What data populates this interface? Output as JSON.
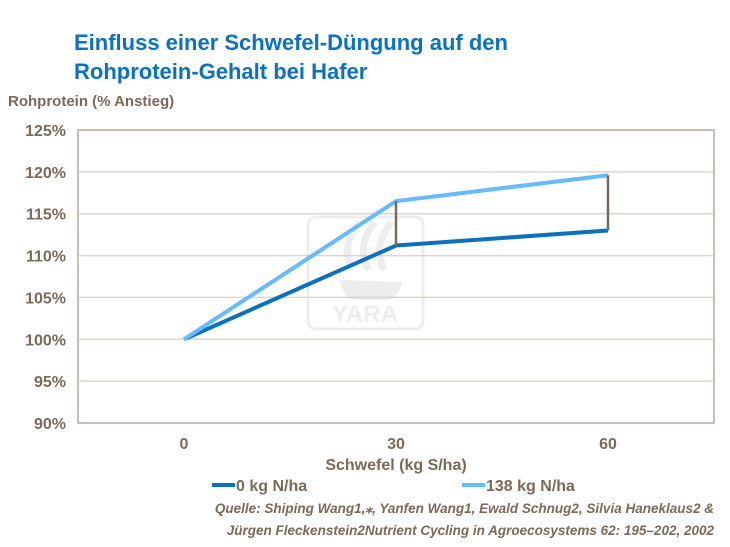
{
  "chart_data": {
    "type": "line",
    "title": [
      "Einfluss einer Schwefel-Düngung auf den",
      "Rohprotein-Gehalt bei Hafer"
    ],
    "ylabel": "Rohprotein (% Anstieg)",
    "xlabel": "Schwefel (kg S/ha)",
    "x": [
      0,
      30,
      60
    ],
    "xticks": [
      "0",
      "30",
      "60"
    ],
    "xlim": [
      -15,
      75
    ],
    "ylim": [
      90,
      125
    ],
    "yticks": [
      "90%",
      "95%",
      "100%",
      "105%",
      "110%",
      "115%",
      "120%",
      "125%"
    ],
    "grid": true,
    "legend_position": "bottom",
    "series": [
      {
        "name": "0 kg N/ha",
        "values": [
          100,
          111.2,
          113.0
        ],
        "color": "#0a70c0"
      },
      {
        "name": "138 kg N/ha",
        "values": [
          100,
          116.5,
          119.6
        ],
        "color": "#66bbff"
      }
    ],
    "difference_bars_color": "#7a6a58"
  },
  "watermark": "YARA",
  "source": [
    "Quelle: Shiping Wang1,⁎, Yanfen Wang1, Ewald Schnug2, Silvia Haneklaus2 &",
    "Jürgen Fleckenstein2Nutrient Cycling in Agroecosystems 62: 195–202, 2002"
  ]
}
